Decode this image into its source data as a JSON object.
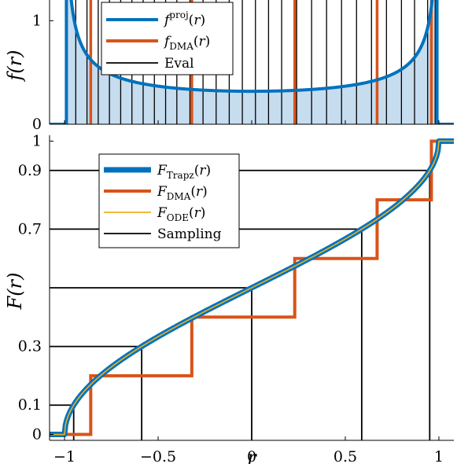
{
  "colors": {
    "blue": "#0072BD",
    "orange": "#D95319",
    "yellow": "#EDB120",
    "black": "#000000",
    "fill": "#C6DCEF"
  },
  "chart_data": [
    {
      "type": "area",
      "ylabel": "f(r)",
      "xlim": [
        -1.08,
        1.08
      ],
      "ylim": [
        0,
        1.2
      ],
      "yticks": [
        0,
        1
      ],
      "ytick_labels": [
        "0",
        "1"
      ],
      "legend": {
        "placement": "top-center",
        "entries": [
          {
            "name": "f",
            "sup": "proj",
            "arg": "(r)",
            "color": "#0072BD"
          },
          {
            "name": "f",
            "sub": "DMA",
            "arg": "(r)",
            "color": "#D95319"
          },
          {
            "name": "Eval",
            "color": "#000000"
          }
        ]
      },
      "series": [
        {
          "name": "f^proj(r)",
          "formula": "1/(pi*sqrt(1-r^2)), clipped at ylim",
          "support": [
            -0.99,
            0.99
          ]
        }
      ],
      "dma_lines_x": [
        -0.86,
        -0.32,
        0.23,
        0.67,
        0.96
      ],
      "eval_lines_x": [
        -0.99,
        -0.94,
        -0.88,
        -0.82,
        -0.76,
        -0.7,
        -0.64,
        -0.58,
        -0.52,
        -0.46,
        -0.4,
        -0.33,
        -0.26,
        -0.19,
        -0.12,
        -0.05,
        0.02,
        0.09,
        0.16,
        0.24,
        0.32,
        0.4,
        0.48,
        0.56,
        0.64,
        0.72,
        0.8,
        0.87,
        0.94,
        0.98
      ]
    },
    {
      "type": "line",
      "xlabel": "r",
      "ylabel": "F(r)",
      "xlim": [
        -1.08,
        1.08
      ],
      "ylim": [
        -0.02,
        1.02
      ],
      "xticks": [
        -1,
        -0.5,
        0,
        0.5,
        1
      ],
      "xtick_labels": [
        "−1",
        "−0.5",
        "0",
        "0.5",
        "1"
      ],
      "yticks": [
        0,
        0.1,
        0.3,
        0.7,
        0.9,
        1
      ],
      "ytick_labels": [
        "0",
        "0.1",
        "0.3",
        "0.7",
        "0.9",
        "1"
      ],
      "legend": {
        "placement": "top-left",
        "entries": [
          {
            "name": "F",
            "sub": "Trapz",
            "arg": "(r)",
            "color": "#0072BD"
          },
          {
            "name": "F",
            "sub": "DMA",
            "arg": "(r)",
            "color": "#D95319"
          },
          {
            "name": "F",
            "sub": "ODE",
            "arg": "(r)",
            "color": "#EDB120"
          },
          {
            "name": "Sampling",
            "color": "#000000"
          }
        ]
      },
      "series": [
        {
          "name": "F_Trapz(r)",
          "formula": "0.5 + asin(r)/pi"
        },
        {
          "name": "F_ODE(r)",
          "formula": "0.5 + asin(r)/pi"
        },
        {
          "name": "F_DMA(r)",
          "steps": [
            {
              "x": -1.08,
              "y": 0.0
            },
            {
              "x": -0.86,
              "y": 0.2
            },
            {
              "x": -0.32,
              "y": 0.4
            },
            {
              "x": 0.23,
              "y": 0.6
            },
            {
              "x": 0.67,
              "y": 0.8
            },
            {
              "x": 0.96,
              "y": 1.0
            },
            {
              "x": 1.08,
              "y": 1.0
            }
          ]
        }
      ],
      "sampling_levels": [
        0.1,
        0.3,
        0.5,
        0.7,
        0.9
      ]
    }
  ]
}
